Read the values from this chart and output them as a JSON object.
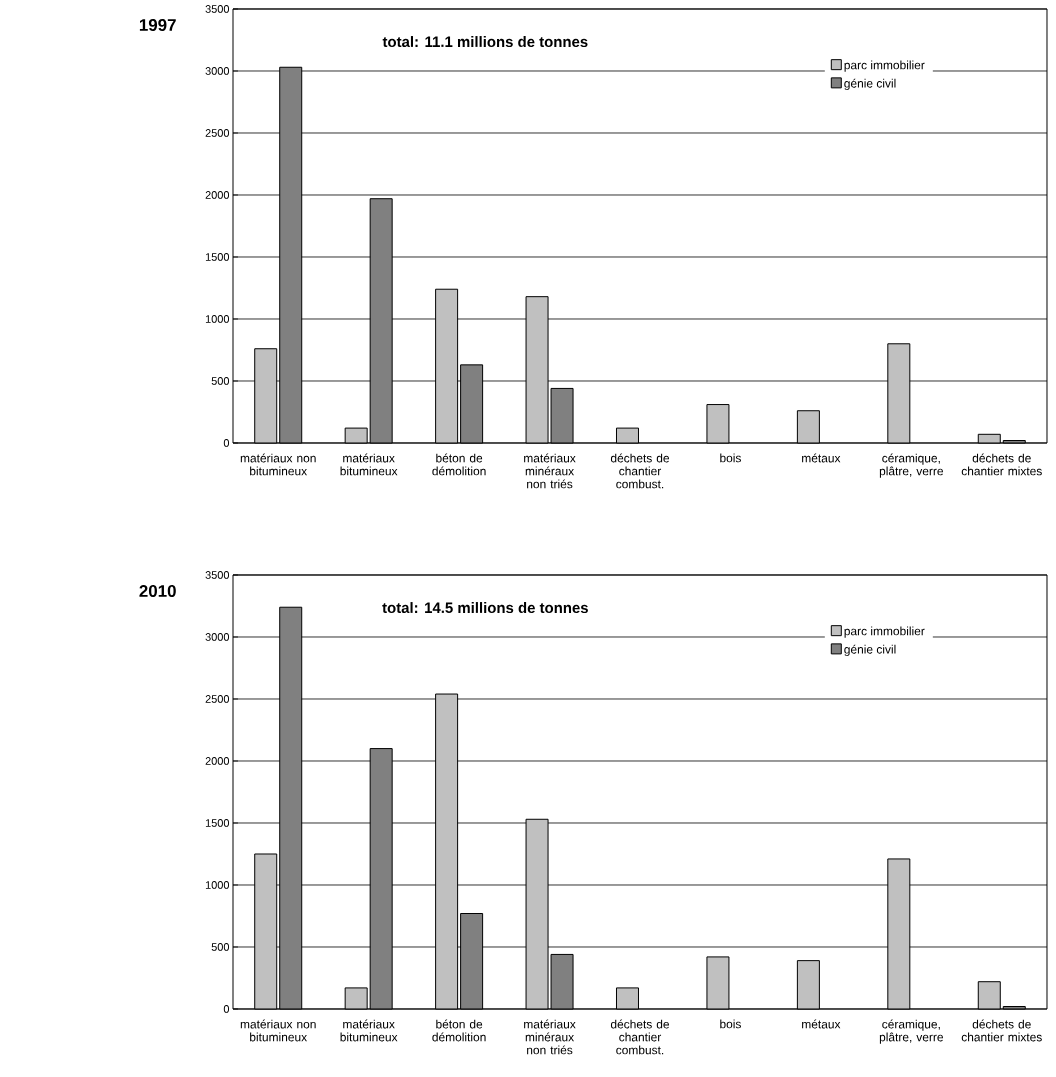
{
  "chart_data": [
    {
      "type": "bar",
      "title": "1997",
      "subtitle": "total: 11.1 millions de tonnes",
      "categories": [
        "matériaux non bitumineux",
        "matériaux bitumineux",
        "béton de démolition",
        "matériaux minéraux non triés",
        "déchets de chantier combust.",
        "bois",
        "métaux",
        "céramique, plâtre, verre",
        "déchets de chantier mixtes"
      ],
      "series": [
        {
          "name": "parc immobilier",
          "color": "#c0c0c0",
          "values": [
            760,
            120,
            1240,
            1180,
            120,
            310,
            260,
            800,
            70
          ]
        },
        {
          "name": "génie civil",
          "color": "#808080",
          "values": [
            3030,
            1970,
            630,
            440,
            null,
            null,
            null,
            null,
            20
          ]
        }
      ],
      "ylim": [
        0,
        3500
      ],
      "yticks": [
        0,
        500,
        1000,
        1500,
        2000,
        2500,
        3000,
        3500
      ],
      "grid": "y",
      "legend": "top right"
    },
    {
      "type": "bar",
      "title": "2010",
      "subtitle": "total: 14.5 millions de tonnes",
      "categories": [
        "matériaux non bitumineux",
        "matériaux bitumineux",
        "béton de démolition",
        "matériaux minéraux non triés",
        "déchets de chantier combust.",
        "bois",
        "métaux",
        "céramique, plâtre, verre",
        "déchets de chantier mixtes"
      ],
      "series": [
        {
          "name": "parc immobilier",
          "color": "#c0c0c0",
          "values": [
            1250,
            170,
            2540,
            1530,
            170,
            420,
            390,
            1210,
            220
          ]
        },
        {
          "name": "génie civil",
          "color": "#808080",
          "values": [
            3240,
            2100,
            770,
            440,
            null,
            null,
            null,
            null,
            20
          ]
        }
      ],
      "ylim": [
        0,
        3500
      ],
      "yticks": [
        0,
        500,
        1000,
        1500,
        2000,
        2500,
        3000,
        3500
      ],
      "grid": "y",
      "legend": "top right"
    }
  ]
}
